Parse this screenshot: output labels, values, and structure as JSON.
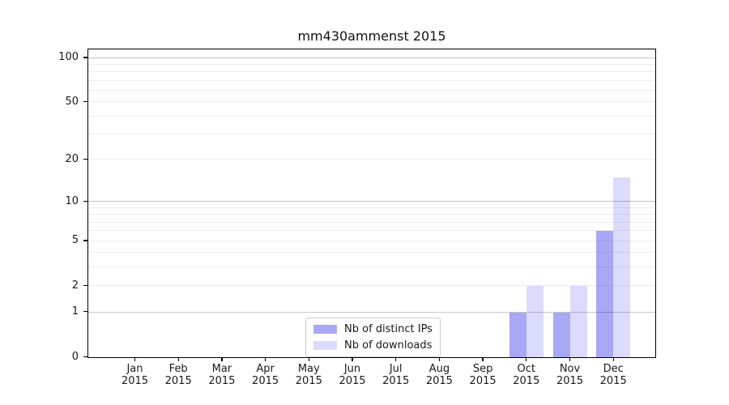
{
  "figure": {
    "background": "#ffffff",
    "spine_color": "#000000"
  },
  "chart_data": {
    "type": "bar",
    "title": "mm430ammenst 2015",
    "categories": [
      "Jan",
      "Feb",
      "Mar",
      "Apr",
      "May",
      "Jun",
      "Jul",
      "Aug",
      "Sep",
      "Oct",
      "Nov",
      "Dec"
    ],
    "x_year_line": "2015",
    "series": [
      {
        "name": "Nb of distinct IPs",
        "color": "rgba(0,0,230,0.34)",
        "values": [
          0,
          0,
          0,
          0,
          0,
          0,
          0,
          0,
          0,
          1,
          1,
          6
        ]
      },
      {
        "name": "Nb of downloads",
        "color": "rgba(0,0,230,0.14)",
        "values": [
          0,
          0,
          0,
          0,
          0,
          0,
          0,
          0,
          0,
          2,
          2,
          15
        ]
      }
    ],
    "y_ticks": [
      0,
      1,
      2,
      5,
      10,
      20,
      50,
      100
    ],
    "scale": "log1p",
    "ylim": [
      0,
      117
    ],
    "grid": {
      "major": [
        1,
        10,
        100
      ],
      "minor": [
        2,
        3,
        4,
        5,
        6,
        7,
        8,
        9,
        20,
        30,
        40,
        50,
        60,
        70,
        80,
        90
      ],
      "major_color": "#c6c6c6",
      "minor_color": "#ededed"
    },
    "legend": {
      "position": "lower center",
      "background": "#ffffff",
      "border_color": "#cccccc"
    },
    "xlabel": "",
    "ylabel": ""
  }
}
